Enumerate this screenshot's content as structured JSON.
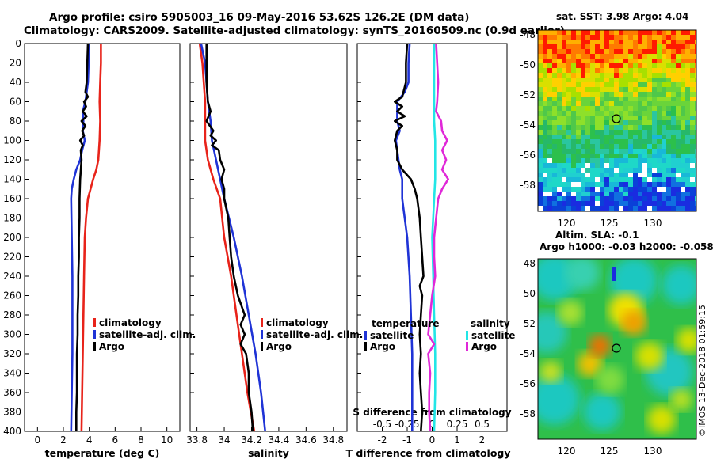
{
  "header": {
    "title_line1": "Argo profile: csiro 5905003_16 09-May-2016 53.62S 126.2E (DM data)",
    "title_line2": "Climatology: CARS2009. Satellite-adjusted climatology: synTS_20160509.nc (0.9d earlier)"
  },
  "colors": {
    "climatology": "#e8231a",
    "satellite": "#1f33d6",
    "argo": "#000000",
    "sal_sat": "#22e6e6",
    "sal_argo": "#e028d8"
  },
  "chart_data": [
    {
      "type": "line",
      "id": "temperature",
      "xlabel": "temperature (deg C)",
      "xlim": [
        -1,
        11
      ],
      "xticks": [
        0,
        2,
        4,
        6,
        8,
        10
      ],
      "ylim": [
        0,
        400
      ],
      "yticks": [
        0,
        20,
        40,
        60,
        80,
        100,
        120,
        140,
        160,
        180,
        200,
        220,
        240,
        260,
        280,
        300,
        320,
        340,
        360,
        380,
        400
      ],
      "legend": [
        "climatology",
        "satellite-adj. clim.",
        "Argo"
      ],
      "series": [
        {
          "name": "climatology",
          "color": "#e8231a",
          "depth": [
            0,
            20,
            40,
            60,
            80,
            100,
            110,
            120,
            130,
            140,
            150,
            160,
            180,
            200,
            240,
            280,
            320,
            360,
            400
          ],
          "values": [
            4.9,
            4.9,
            4.85,
            4.8,
            4.85,
            4.8,
            4.75,
            4.7,
            4.55,
            4.3,
            4.1,
            3.9,
            3.75,
            3.65,
            3.6,
            3.55,
            3.5,
            3.45,
            3.4
          ]
        },
        {
          "name": "satellite-adj. clim.",
          "color": "#1f33d6",
          "depth": [
            0,
            20,
            40,
            60,
            70,
            80,
            90,
            100,
            110,
            120,
            130,
            140,
            150,
            160,
            200,
            240,
            280,
            320,
            360,
            400
          ],
          "values": [
            4.0,
            3.95,
            3.9,
            3.7,
            3.5,
            3.55,
            3.5,
            3.65,
            3.45,
            3.3,
            3.0,
            2.8,
            2.65,
            2.6,
            2.65,
            2.7,
            2.7,
            2.7,
            2.65,
            2.6
          ]
        },
        {
          "name": "Argo",
          "color": "#000000",
          "depth": [
            0,
            20,
            40,
            50,
            55,
            60,
            65,
            70,
            75,
            80,
            85,
            90,
            95,
            100,
            105,
            110,
            120,
            140,
            160,
            180,
            200,
            220,
            240,
            260,
            280,
            300,
            320,
            340,
            360,
            380,
            400
          ],
          "values": [
            3.9,
            3.85,
            3.8,
            3.7,
            3.9,
            3.6,
            3.75,
            3.5,
            3.8,
            3.4,
            3.7,
            3.45,
            3.6,
            3.3,
            3.5,
            3.35,
            3.4,
            3.3,
            3.25,
            3.25,
            3.2,
            3.2,
            3.15,
            3.15,
            3.1,
            3.1,
            3.05,
            3.05,
            3.05,
            3.0,
            3.0
          ]
        }
      ]
    },
    {
      "type": "line",
      "id": "salinity",
      "xlabel": "salinity",
      "xlim": [
        33.75,
        34.9
      ],
      "xticks": [
        33.8,
        34,
        34.2,
        34.4,
        34.6,
        34.8
      ],
      "xticklabels": [
        "33.8",
        "34",
        "34.2",
        "34.4",
        "34.6",
        "34.8"
      ],
      "ylim": [
        0,
        400
      ],
      "legend": [
        "climatology",
        "satellite-adj. clim.",
        "Argo"
      ],
      "series": [
        {
          "name": "climatology",
          "color": "#e8231a",
          "depth": [
            0,
            20,
            40,
            60,
            80,
            100,
            120,
            140,
            160,
            200,
            240,
            280,
            320,
            360,
            400
          ],
          "values": [
            33.82,
            33.84,
            33.85,
            33.86,
            33.86,
            33.86,
            33.88,
            33.92,
            33.97,
            34.0,
            34.05,
            34.09,
            34.13,
            34.17,
            34.22
          ]
        },
        {
          "name": "satellite-adj. clim.",
          "color": "#1f33d6",
          "depth": [
            0,
            20,
            40,
            60,
            80,
            100,
            120,
            140,
            160,
            200,
            240,
            280,
            320,
            360,
            400
          ],
          "values": [
            33.83,
            33.86,
            33.87,
            33.88,
            33.9,
            33.91,
            33.94,
            33.97,
            34.0,
            34.07,
            34.13,
            34.18,
            34.23,
            34.27,
            34.3
          ]
        },
        {
          "name": "Argo",
          "color": "#000000",
          "depth": [
            0,
            20,
            40,
            60,
            70,
            80,
            90,
            95,
            100,
            105,
            110,
            120,
            130,
            140,
            150,
            160,
            180,
            200,
            220,
            240,
            260,
            280,
            290,
            300,
            310,
            320,
            340,
            360,
            380,
            400
          ],
          "values": [
            33.87,
            33.87,
            33.87,
            33.88,
            33.9,
            33.87,
            33.92,
            33.9,
            33.94,
            33.91,
            33.96,
            33.97,
            34.0,
            33.98,
            34.0,
            34.0,
            34.03,
            34.04,
            34.05,
            34.07,
            34.1,
            34.15,
            34.12,
            34.15,
            34.12,
            34.16,
            34.18,
            34.18,
            34.2,
            34.21
          ]
        }
      ]
    },
    {
      "type": "line",
      "id": "difference",
      "xlabel": "T difference from climatology",
      "xlim": [
        -3,
        3
      ],
      "xticks": [
        -2,
        -1,
        0,
        1,
        2
      ],
      "top_xlabel": "S difference from climatology",
      "top_xlim": [
        -0.75,
        0.75
      ],
      "top_xticks": [
        -0.5,
        -0.25,
        0,
        0.25,
        0.5
      ],
      "top_xticklabels": [
        "-0.5",
        "-0.25",
        "0",
        "0.25",
        "0.5"
      ],
      "ylim": [
        0,
        400
      ],
      "legend_left": {
        "heading": "temperature",
        "items": [
          "satellite",
          "Argo"
        ]
      },
      "legend_right": {
        "heading": "salinity",
        "items": [
          "satellite",
          "Argo"
        ]
      },
      "series": [
        {
          "name": "temperature satellite",
          "axis": "T",
          "color": "#1f33d6",
          "depth": [
            0,
            20,
            40,
            50,
            60,
            70,
            80,
            90,
            100,
            110,
            120,
            130,
            140,
            160,
            200,
            240,
            280,
            320,
            360,
            400
          ],
          "values": [
            -0.9,
            -0.95,
            -0.95,
            -1.1,
            -1.4,
            -1.4,
            -1.4,
            -1.3,
            -1.45,
            -1.4,
            -1.35,
            -1.3,
            -1.2,
            -1.2,
            -1.0,
            -0.9,
            -0.85,
            -0.8,
            -0.8,
            -0.8
          ]
        },
        {
          "name": "temperature Argo",
          "axis": "T",
          "color": "#000000",
          "depth": [
            0,
            20,
            40,
            55,
            60,
            65,
            70,
            75,
            80,
            85,
            90,
            100,
            110,
            120,
            130,
            140,
            150,
            160,
            180,
            200,
            220,
            240,
            250,
            260,
            280,
            300,
            320,
            340,
            360,
            380,
            400
          ],
          "values": [
            -1.0,
            -1.05,
            -1.05,
            -1.2,
            -1.5,
            -1.2,
            -1.4,
            -1.1,
            -1.5,
            -1.2,
            -1.4,
            -1.5,
            -1.4,
            -1.4,
            -1.2,
            -0.85,
            -0.7,
            -0.6,
            -0.5,
            -0.45,
            -0.4,
            -0.35,
            -0.5,
            -0.4,
            -0.45,
            -0.5,
            -0.45,
            -0.5,
            -0.45,
            -0.4,
            -0.45
          ]
        },
        {
          "name": "salinity satellite",
          "axis": "S",
          "color": "#22e6e6",
          "depth": [
            0,
            40,
            80,
            100,
            120,
            140,
            160,
            200,
            240,
            280,
            320,
            360,
            400
          ],
          "values": [
            0.02,
            0.02,
            0.02,
            0.03,
            0.03,
            0.03,
            0.02,
            0.0,
            0.01,
            0.02,
            0.03,
            0.03,
            0.02
          ]
        },
        {
          "name": "salinity Argo",
          "axis": "S",
          "color": "#e028d8",
          "depth": [
            0,
            20,
            40,
            60,
            70,
            80,
            90,
            100,
            110,
            120,
            130,
            140,
            150,
            160,
            180,
            200,
            220,
            240,
            260,
            280,
            300,
            310,
            320,
            340,
            360,
            380,
            400
          ],
          "values": [
            0.04,
            0.05,
            0.06,
            0.05,
            0.04,
            0.09,
            0.1,
            0.15,
            0.1,
            0.14,
            0.1,
            0.16,
            0.1,
            0.06,
            0.04,
            0.02,
            0.02,
            0.03,
            0.0,
            -0.02,
            -0.04,
            0.02,
            -0.04,
            -0.02,
            -0.03,
            -0.03,
            -0.02
          ]
        }
      ]
    }
  ],
  "maps": {
    "sst": {
      "title": "sat. SST: 3.98 Argo: 4.04",
      "yticks": [
        "-48",
        "-50",
        "-52",
        "-54",
        "-56",
        "-58"
      ],
      "xticks": [
        "120",
        "125",
        "130"
      ]
    },
    "sla": {
      "title1": "Altim. SLA: -0.1",
      "title2": "Argo h1000: -0.03 h2000: -0.058",
      "yticks": [
        "-48",
        "-50",
        "-52",
        "-54",
        "-56",
        "-58"
      ],
      "xticks": [
        "120",
        "125",
        "130"
      ]
    }
  },
  "watermark": "©IMOS 13-Dec-2018 01:59:15"
}
